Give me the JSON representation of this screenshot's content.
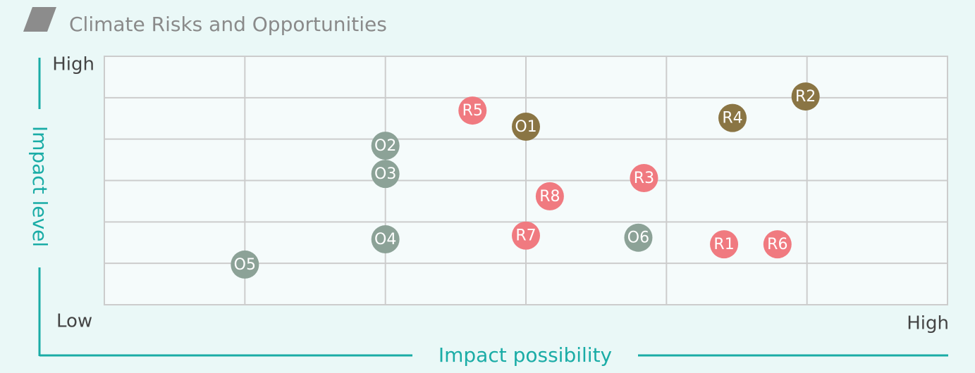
{
  "chart_data": {
    "type": "scatter",
    "title": "Climate Risks and Opportunities",
    "x_label": "Impact possibility",
    "y_label": "Impact level",
    "xlim": [
      0,
      6
    ],
    "ylim": [
      0,
      6
    ],
    "xgrid": [
      0,
      1,
      2,
      3,
      4,
      5,
      6
    ],
    "ygrid": [
      0,
      1,
      2,
      3,
      4,
      5,
      6
    ],
    "xticks": [
      {
        "value": 6,
        "label": "High"
      }
    ],
    "yticks": [
      {
        "value": 6,
        "label": "High"
      }
    ],
    "origin_label": "Low",
    "series": [
      {
        "color": "#f07a80",
        "labels": [
          "R1",
          "R3",
          "R5",
          "R6",
          "R7",
          "R8"
        ],
        "x": [
          4.41,
          3.84,
          2.62,
          4.79,
          3.0,
          3.17
        ],
        "values": [
          1.46,
          3.06,
          4.69,
          1.46,
          1.67,
          2.62
        ]
      },
      {
        "color": "#8a7544",
        "labels": [
          "R2",
          "R4",
          "O1"
        ],
        "x": [
          4.99,
          4.47,
          3.0
        ],
        "values": [
          5.03,
          4.51,
          4.3
        ]
      },
      {
        "color": "#8ca297",
        "labels": [
          "O2",
          "O3",
          "O4",
          "O5",
          "O6"
        ],
        "x": [
          2.0,
          2.0,
          2.0,
          1.0,
          3.8
        ],
        "values": [
          3.84,
          3.16,
          1.58,
          0.97,
          1.62
        ]
      }
    ]
  }
}
